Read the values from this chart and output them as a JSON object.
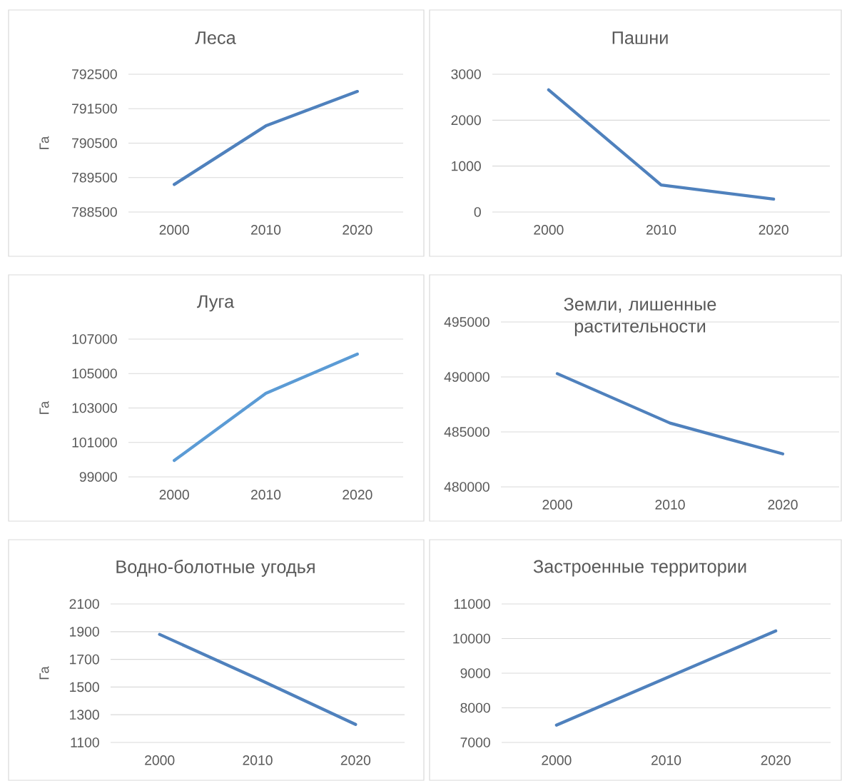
{
  "chart_data": [
    {
      "type": "line",
      "title": "Леса",
      "ylabel": "Га",
      "categories": [
        "2000",
        "2010",
        "2020"
      ],
      "values": [
        789300,
        791000,
        792000
      ],
      "color": "#4f81bd",
      "ylim": [
        788500,
        792500
      ],
      "yticks": [
        788500,
        789500,
        790500,
        791500,
        792500
      ],
      "grid": "y"
    },
    {
      "type": "line",
      "title": "Пашни",
      "categories": [
        "2000",
        "2010",
        "2020"
      ],
      "values": [
        2660,
        590,
        280
      ],
      "color": "#4f81bd",
      "ylim": [
        0,
        3000
      ],
      "yticks": [
        0,
        1000,
        2000,
        3000
      ],
      "grid": "y"
    },
    {
      "type": "line",
      "title": "Луга",
      "ylabel": "Га",
      "categories": [
        "2000",
        "2010",
        "2020"
      ],
      "values": [
        99950,
        103850,
        106130
      ],
      "color": "#5b9bd5",
      "ylim": [
        99000,
        107000
      ],
      "yticks": [
        99000,
        101000,
        103000,
        105000,
        107000
      ],
      "grid": "y"
    },
    {
      "type": "line",
      "title": "Земли, лишенные растительности",
      "categories": [
        "2000",
        "2010",
        "2020"
      ],
      "values": [
        490300,
        485800,
        483000
      ],
      "color": "#4f81bd",
      "ylim": [
        480000,
        495000
      ],
      "yticks": [
        480000,
        485000,
        490000,
        495000
      ],
      "grid": "y"
    },
    {
      "type": "line",
      "title": "Водно-болотные угодья",
      "ylabel": "Га",
      "categories": [
        "2000",
        "2010",
        "2020"
      ],
      "values": [
        1880,
        1560,
        1230
      ],
      "color": "#4f81bd",
      "ylim": [
        1100,
        2100
      ],
      "yticks": [
        1100,
        1300,
        1500,
        1700,
        1900,
        2100
      ],
      "grid": "y"
    },
    {
      "type": "line",
      "title": "Застроенные территории",
      "categories": [
        "2000",
        "2010",
        "2020"
      ],
      "values": [
        7500,
        8860,
        10220
      ],
      "color": "#4f81bd",
      "ylim": [
        7000,
        11000
      ],
      "yticks": [
        7000,
        8000,
        9000,
        10000,
        11000
      ],
      "grid": "y"
    }
  ]
}
